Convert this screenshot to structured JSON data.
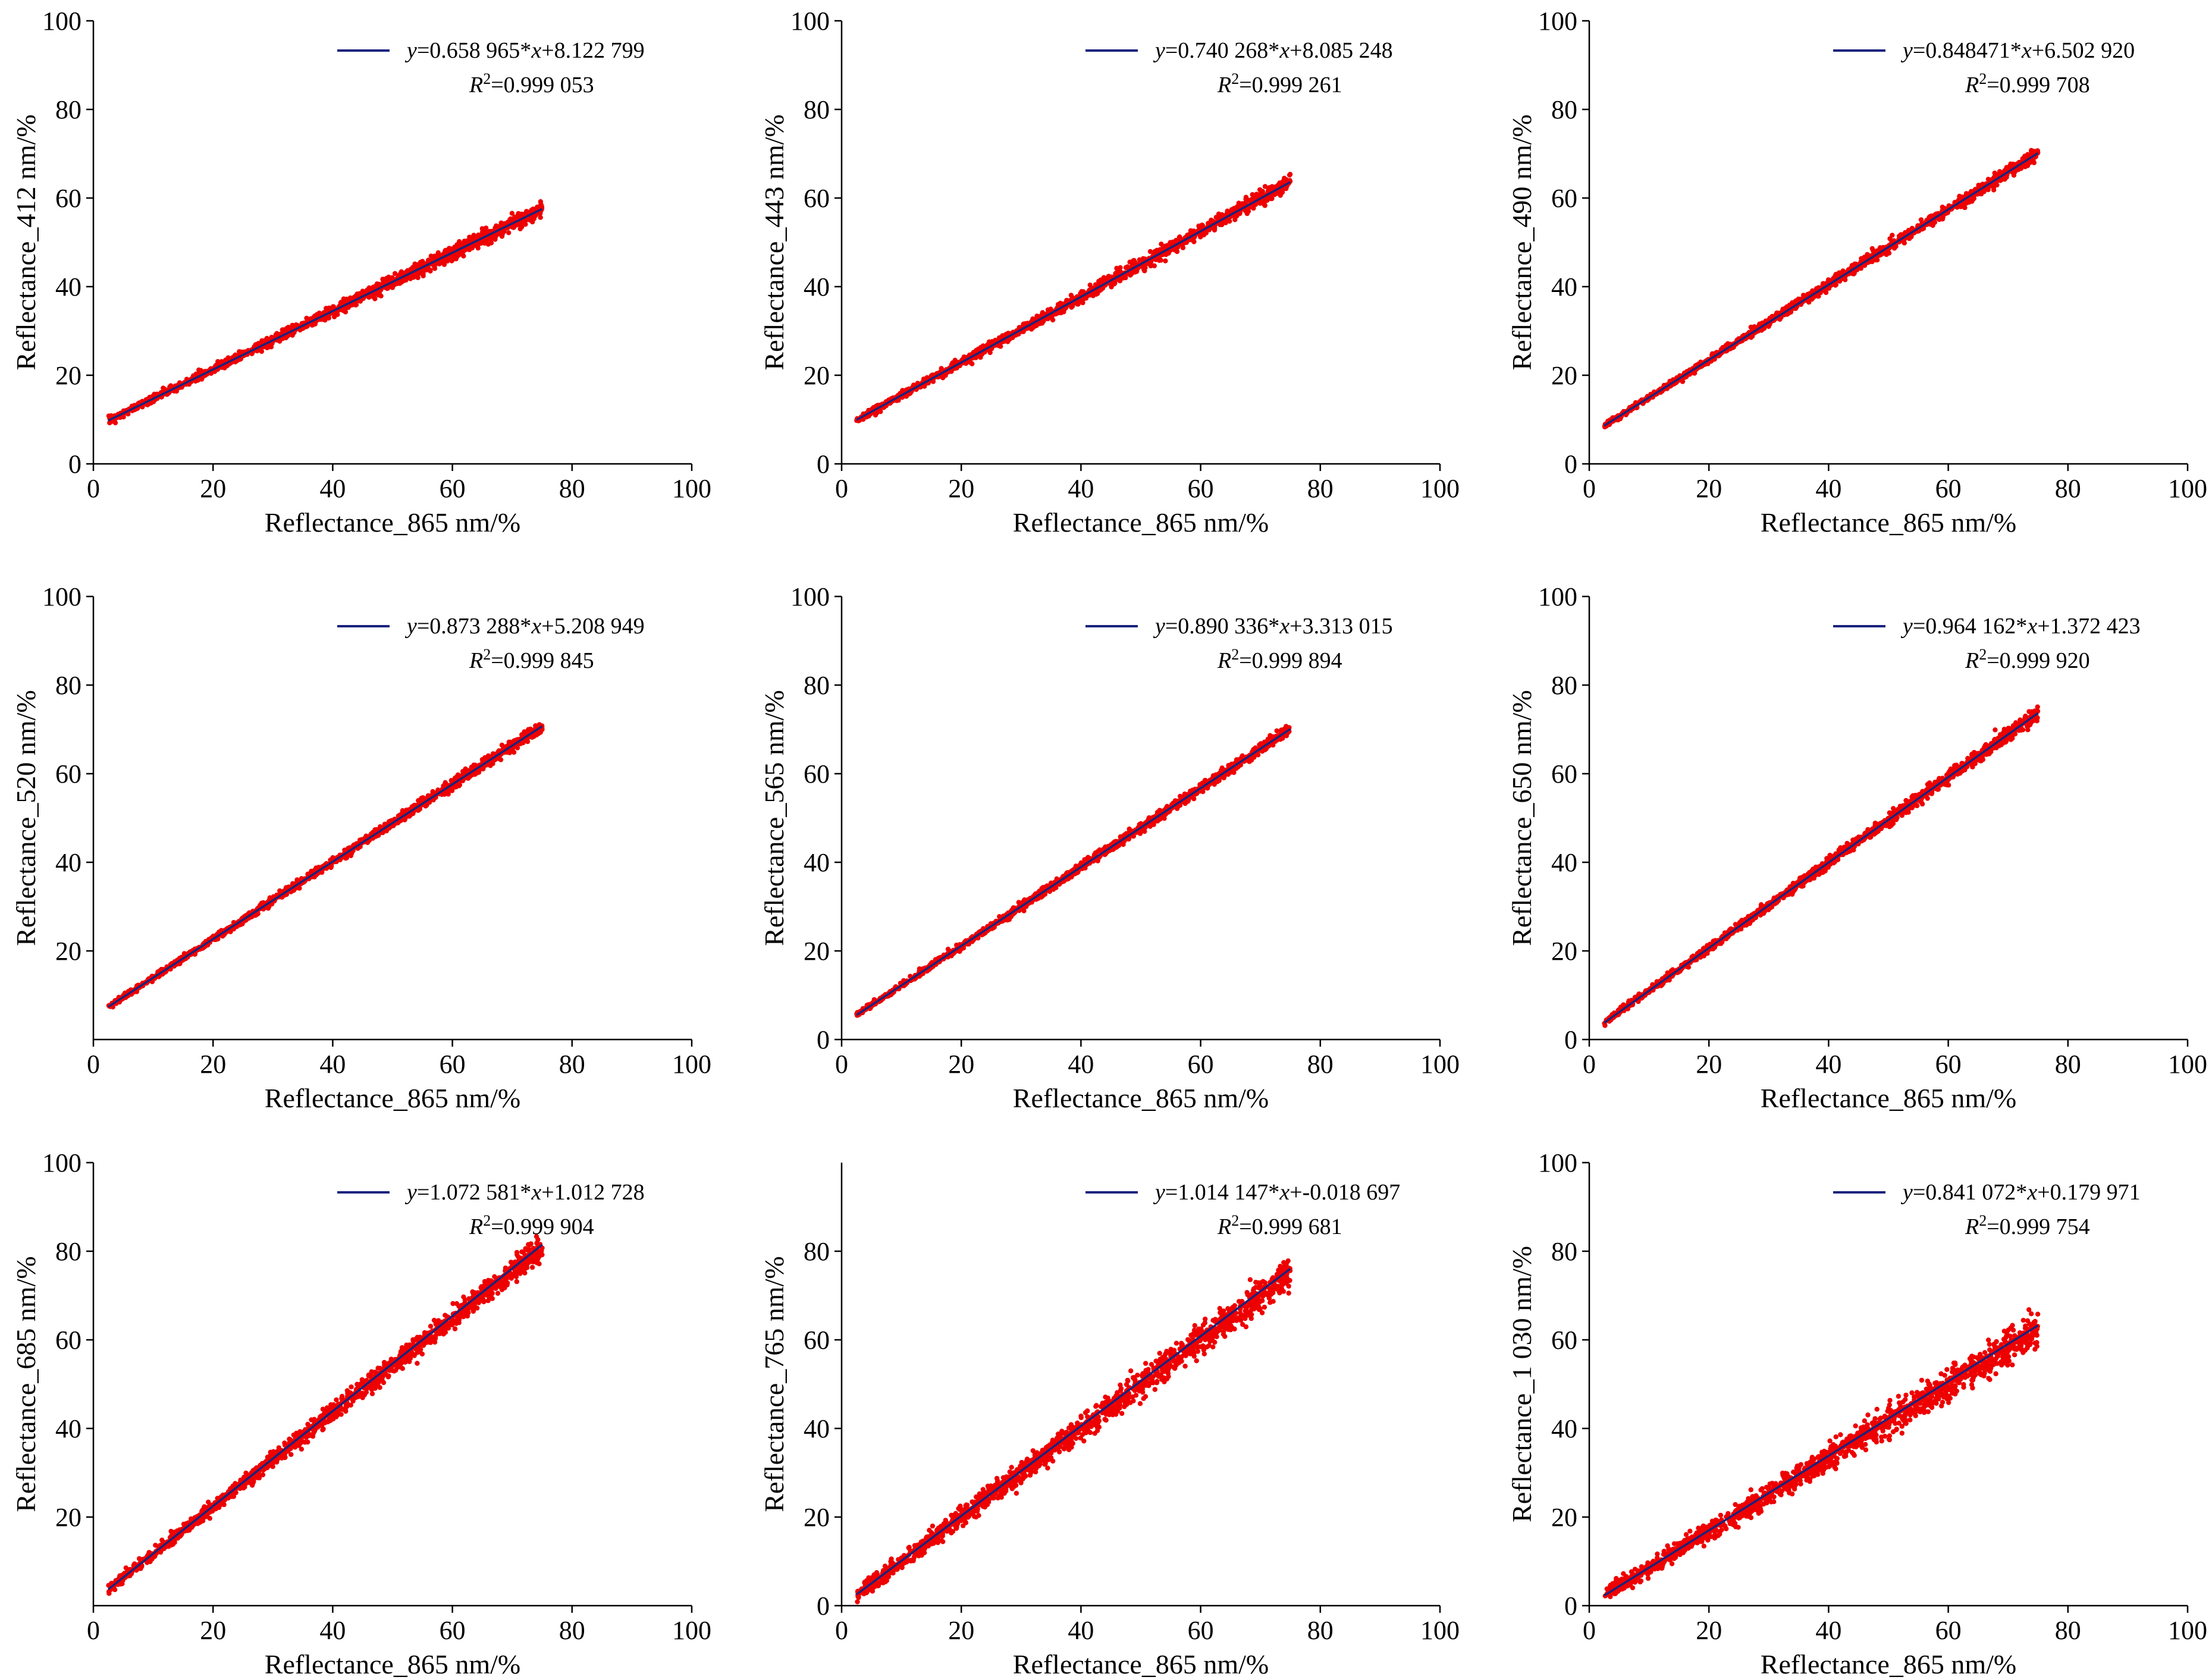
{
  "colors": {
    "points": "#ee0000",
    "fit_line": "#1a237e",
    "axis": "#000000"
  },
  "chart_data": [
    {
      "type": "scatter",
      "xlabel": "Reflectance_865 nm/%",
      "ylabel": "Reflectance_412 nm/%",
      "xlim": [
        0,
        100
      ],
      "ylim": [
        0,
        100
      ],
      "xticks": [
        0,
        20,
        40,
        60,
        80,
        100
      ],
      "yticks": [
        0,
        20,
        40,
        60,
        80,
        100
      ],
      "x_range": [
        2.5,
        75
      ],
      "fit": {
        "slope": 0.658965,
        "intercept": 8.122799
      },
      "spread": 0.6,
      "legend": {
        "equation_parts": [
          "y",
          "=0.658 965*",
          "x",
          "+8.122 799"
        ],
        "r2_value": "=0.999 053",
        "r2_symbol": "R",
        "r2_exp": "2"
      }
    },
    {
      "type": "scatter",
      "xlabel": "Reflectance_865 nm/%",
      "ylabel": "Reflectance_443 nm/%",
      "xlim": [
        0,
        100
      ],
      "ylim": [
        0,
        100
      ],
      "xticks": [
        0,
        20,
        40,
        60,
        80,
        100
      ],
      "yticks": [
        0,
        20,
        40,
        60,
        80,
        100
      ],
      "x_range": [
        2.5,
        75
      ],
      "fit": {
        "slope": 0.740268,
        "intercept": 8.085248
      },
      "spread": 0.6,
      "legend": {
        "equation_parts": [
          "y",
          "=0.740 268*",
          "x",
          "+8.085 248"
        ],
        "r2_value": "=0.999 261",
        "r2_symbol": "R",
        "r2_exp": "2"
      }
    },
    {
      "type": "scatter",
      "xlabel": "Reflectance_865 nm/%",
      "ylabel": "Reflectance_490 nm/%",
      "xlim": [
        0,
        100
      ],
      "ylim": [
        0,
        100
      ],
      "xticks": [
        0,
        20,
        40,
        60,
        80,
        100
      ],
      "yticks": [
        0,
        20,
        40,
        60,
        80,
        100
      ],
      "x_range": [
        2.5,
        75
      ],
      "fit": {
        "slope": 0.848471,
        "intercept": 6.50292
      },
      "spread": 0.5,
      "legend": {
        "equation_parts": [
          "y",
          "=0.848471*",
          "x",
          "+6.502 920"
        ],
        "r2_value": "=0.999 708",
        "r2_symbol": "R",
        "r2_exp": "2"
      }
    },
    {
      "type": "scatter",
      "xlabel": "Reflectance_865 nm/%",
      "ylabel": "Reflectance_520 nm/%",
      "xlim": [
        0,
        100
      ],
      "ylim": [
        0,
        100
      ],
      "xticks": [
        0,
        20,
        40,
        60,
        80,
        100
      ],
      "yticks": [
        20,
        40,
        60,
        80,
        100
      ],
      "x_range": [
        2.5,
        75
      ],
      "fit": {
        "slope": 0.873288,
        "intercept": 5.208949
      },
      "spread": 0.45,
      "legend": {
        "equation_parts": [
          "y",
          "=0.873 288*",
          "x",
          "+5.208 949"
        ],
        "r2_value": "=0.999 845",
        "r2_symbol": "R",
        "r2_exp": "2"
      }
    },
    {
      "type": "scatter",
      "xlabel": "Reflectance_865 nm/%",
      "ylabel": "Reflectance_565 nm/%",
      "xlim": [
        0,
        100
      ],
      "ylim": [
        0,
        100
      ],
      "xticks": [
        0,
        20,
        40,
        60,
        80,
        100
      ],
      "yticks": [
        0,
        20,
        40,
        60,
        80,
        100
      ],
      "x_range": [
        2.5,
        75
      ],
      "fit": {
        "slope": 0.890336,
        "intercept": 3.313015
      },
      "spread": 0.45,
      "legend": {
        "equation_parts": [
          "y",
          "=0.890 336*",
          "x",
          "+3.313 015"
        ],
        "r2_value": "=0.999 894",
        "r2_symbol": "R",
        "r2_exp": "2"
      }
    },
    {
      "type": "scatter",
      "xlabel": "Reflectance_865 nm/%",
      "ylabel": "Reflectance_650 nm/%",
      "xlim": [
        0,
        100
      ],
      "ylim": [
        0,
        100
      ],
      "xticks": [
        0,
        20,
        40,
        60,
        80,
        100
      ],
      "yticks": [
        0,
        20,
        40,
        60,
        80,
        100
      ],
      "x_range": [
        2.5,
        75
      ],
      "fit": {
        "slope": 0.964162,
        "intercept": 1.372423
      },
      "spread": 0.55,
      "legend": {
        "equation_parts": [
          "y",
          "=0.964 162*",
          "x",
          "+1.372 423"
        ],
        "r2_value": "=0.999 920",
        "r2_symbol": "R",
        "r2_exp": "2"
      }
    },
    {
      "type": "scatter",
      "xlabel": "Reflectance_865 nm/%",
      "ylabel": "Reflectance_685 nm/%",
      "xlim": [
        0,
        100
      ],
      "ylim": [
        0,
        100
      ],
      "xticks": [
        0,
        20,
        40,
        60,
        80,
        100
      ],
      "yticks": [
        20,
        40,
        60,
        80,
        100
      ],
      "x_range": [
        2.5,
        75
      ],
      "fit": {
        "slope": 1.072581,
        "intercept": 1.012728
      },
      "spread": 0.9,
      "legend": {
        "equation_parts": [
          "y",
          "=1.072 581*",
          "x",
          "+1.012 728"
        ],
        "r2_value": "=0.999 904",
        "r2_symbol": "R",
        "r2_exp": "2"
      }
    },
    {
      "type": "scatter",
      "xlabel": "Reflectance_865 nm/%",
      "ylabel": "Reflectance_765 nm/%",
      "xlim": [
        0,
        100
      ],
      "ylim": [
        0,
        100
      ],
      "xticks": [
        0,
        20,
        40,
        60,
        80,
        100
      ],
      "yticks": [
        0,
        20,
        40,
        60,
        80
      ],
      "x_range": [
        2.5,
        75
      ],
      "fit": {
        "slope": 1.014147,
        "intercept": -0.018697
      },
      "spread": 1.3,
      "legend": {
        "equation_parts": [
          "y",
          "=1.014 147*",
          "x",
          "+-0.018 697"
        ],
        "r2_value": "=0.999 681",
        "r2_symbol": "R",
        "r2_exp": "2"
      }
    },
    {
      "type": "scatter",
      "xlabel": "Reflectance_865 nm/%",
      "ylabel": "Reflectance_1 030 nm/%",
      "xlim": [
        0,
        100
      ],
      "ylim": [
        0,
        100
      ],
      "xticks": [
        0,
        20,
        40,
        60,
        80,
        100
      ],
      "yticks": [
        0,
        20,
        40,
        60,
        80,
        100
      ],
      "x_range": [
        2.5,
        75
      ],
      "fit": {
        "slope": 0.841072,
        "intercept": 0.179971
      },
      "spread": 1.3,
      "legend": {
        "equation_parts": [
          "y",
          "=0.841 072*",
          "x",
          "+0.179 971"
        ],
        "r2_value": "=0.999 754",
        "r2_symbol": "R",
        "r2_exp": "2"
      }
    }
  ]
}
